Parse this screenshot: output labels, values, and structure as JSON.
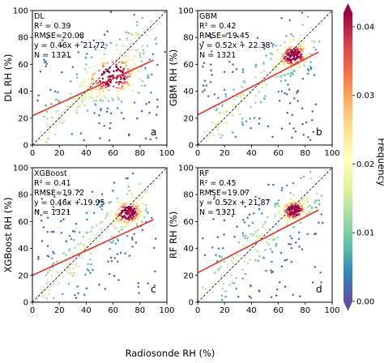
{
  "figure": {
    "xlabel": "Radiosonde RH (%)"
  },
  "colorbar": {
    "label": "Frequency",
    "ticks": [
      "0.00",
      "0.01",
      "0.02",
      "0.03",
      "0.04"
    ],
    "min": 0,
    "max": 0.042,
    "colors": [
      "#5e4fa2",
      "#3288bd",
      "#66c2a5",
      "#abdda4",
      "#e6f598",
      "#ffffbf",
      "#fee08b",
      "#fdae61",
      "#f46d43",
      "#d53e4f",
      "#9e0142"
    ]
  },
  "chart_data": [
    {
      "type": "scatter",
      "model": "DL",
      "ylabel": "DL RH (%)",
      "panel_letter": "a",
      "r2_text": "R² = 0.39",
      "rmse_text": "RMSE=20.08",
      "eq_text": "y = 0.46x + 21.72",
      "n_text": "N = 1321",
      "fit": {
        "slope": 0.46,
        "intercept": 21.72
      },
      "xlim": [
        0,
        100
      ],
      "ylim": [
        0,
        100
      ],
      "xticks": [
        "0",
        "20",
        "40",
        "60",
        "80",
        "100"
      ],
      "yticks": [
        "0",
        "20",
        "40",
        "60",
        "80",
        "100"
      ],
      "cluster": {
        "x": 62,
        "y": 50,
        "sx": 12,
        "sy": 9,
        "rho": 0.5
      },
      "seed": 11
    },
    {
      "type": "scatter",
      "model": "GBM",
      "ylabel": "GBM RH (%)",
      "panel_letter": "b",
      "r2_text": "R² = 0.42",
      "rmse_text": "RMSE=19.45",
      "eq_text": "y = 0.52x + 22.38",
      "n_text": "N = 1321",
      "fit": {
        "slope": 0.52,
        "intercept": 22.38
      },
      "xlim": [
        0,
        100
      ],
      "ylim": [
        0,
        100
      ],
      "xticks": [
        "0",
        "20",
        "40",
        "60",
        "80",
        "100"
      ],
      "yticks": [
        "0",
        "20",
        "40",
        "60",
        "80",
        "100"
      ],
      "cluster": {
        "x": 72,
        "y": 66,
        "sx": 6,
        "sy": 5,
        "rho": 0.4
      },
      "seed": 23
    },
    {
      "type": "scatter",
      "model": "XGBoost",
      "ylabel": "XGBoost RH (%)",
      "panel_letter": "c",
      "r2_text": "R² = 0.41",
      "rmse_text": "RMSE=19.72",
      "eq_text": "y = 0.46x + 19.95",
      "n_text": "N = 1321",
      "fit": {
        "slope": 0.46,
        "intercept": 19.95
      },
      "xlim": [
        0,
        100
      ],
      "ylim": [
        0,
        100
      ],
      "xticks": [
        "0",
        "20",
        "40",
        "60",
        "80",
        "100"
      ],
      "yticks": [
        "0",
        "20",
        "40",
        "60",
        "80",
        "100"
      ],
      "cluster": {
        "x": 72,
        "y": 66,
        "sx": 6,
        "sy": 5,
        "rho": 0.4
      },
      "seed": 37
    },
    {
      "type": "scatter",
      "model": "RF",
      "ylabel": "RF RH (%)",
      "panel_letter": "d",
      "r2_text": "R² = 0.45",
      "rmse_text": "RMSE=19.07",
      "eq_text": "y = 0.52x + 21.87",
      "n_text": "N = 1321",
      "fit": {
        "slope": 0.52,
        "intercept": 21.87
      },
      "xlim": [
        0,
        100
      ],
      "ylim": [
        0,
        100
      ],
      "xticks": [
        "0",
        "20",
        "40",
        "60",
        "80",
        "100"
      ],
      "yticks": [
        "0",
        "20",
        "40",
        "60",
        "80",
        "100"
      ],
      "cluster": {
        "x": 72,
        "y": 68,
        "sx": 5,
        "sy": 4,
        "rho": 0.3
      },
      "seed": 41
    }
  ]
}
